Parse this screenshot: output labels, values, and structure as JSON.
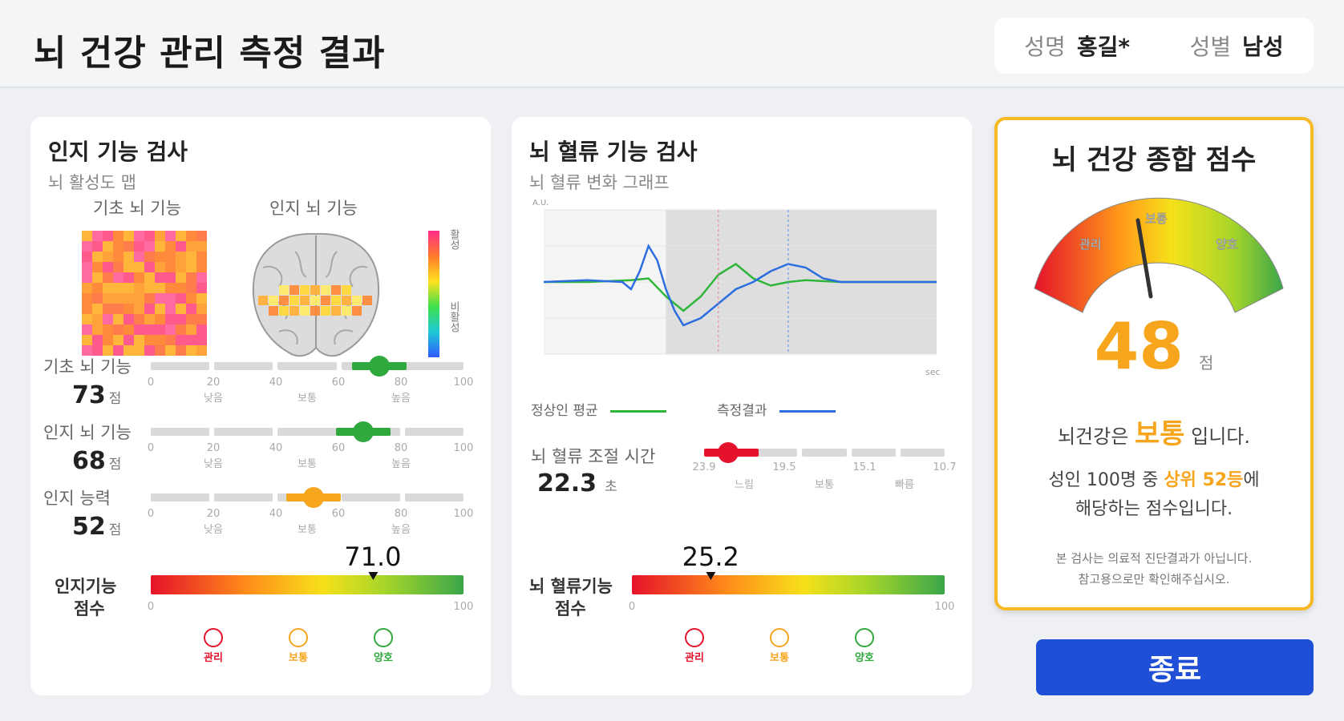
{
  "header": {
    "title": "뇌 건강 관리 측정 결과",
    "name_label": "성명",
    "name_value": "홍길*",
    "gender_label": "성별",
    "gender_value": "남성"
  },
  "cognitive": {
    "title": "인지 기능 검사",
    "subtitle": "뇌 활성도 맵",
    "map_left_label": "기초 뇌 기능",
    "map_right_label": "인지 뇌 기능",
    "colorbar_top": "활성",
    "colorbar_bottom": "비활성",
    "tick_values": [
      "0",
      "20",
      "40",
      "60",
      "80",
      "100"
    ],
    "tick_grades": [
      "낮음",
      "보통",
      "높음"
    ],
    "metrics": [
      {
        "name": "기초 뇌 기능",
        "value": "73",
        "unit": "점",
        "level": 73,
        "color": "#2fa83e"
      },
      {
        "name": "인지 뇌 기능",
        "value": "68",
        "unit": "점",
        "level": 68,
        "color": "#2fa83e"
      },
      {
        "name": "인지 능력",
        "value": "52",
        "unit": "점",
        "level": 52,
        "color": "#f7a51c"
      }
    ],
    "score_label_1": "인지기능",
    "score_label_2": "점수",
    "score_value": "71.0",
    "score_level": 71.0,
    "scale_min": "0",
    "scale_max": "100",
    "faces": [
      "관리",
      "보통",
      "양호"
    ]
  },
  "bloodflow": {
    "title": "뇌 혈류 기능 검사",
    "subtitle": "뇌 혈류 변화 그래프",
    "y_unit": "A.U.",
    "x_unit": "sec",
    "legend_normal": "정상인 평균",
    "legend_measured": "측정결과",
    "time_label": "뇌 혈류 조절 시간",
    "time_value": "22.3",
    "time_unit": "초",
    "time_ticks": [
      "23.9",
      "19.5",
      "15.1",
      "10.7"
    ],
    "time_grades": [
      "느림",
      "보통",
      "빠름"
    ],
    "score_label_1": "뇌 혈류기능",
    "score_label_2": "점수",
    "score_value": "25.2",
    "score_level": 25.2,
    "scale_min": "0",
    "scale_max": "100",
    "faces": [
      "관리",
      "보통",
      "양호"
    ]
  },
  "total": {
    "title": "뇌 건강 종합 점수",
    "gauge_labels": [
      "관리",
      "보통",
      "양호"
    ],
    "score": "48",
    "score_unit": "점",
    "status_prefix": "뇌건강은",
    "status": "보통",
    "status_suffix": "입니다.",
    "rank_prefix": "성인 100명 중",
    "rank": "상위 52등",
    "rank_suffix": "에",
    "rank_line2": "해당하는 점수입니다.",
    "notice_1": "본 검사는 의료적 진단결과가 아닙니다.",
    "notice_2": "참고용으로만 확인해주십시오."
  },
  "end_button": "종료",
  "colors": {
    "accent_orange": "#f7a51c",
    "accent_blue": "#1f4fd6",
    "good_green": "#2fa83e",
    "bad_red": "#e4122a"
  },
  "chart_data": {
    "type": "line",
    "title": "뇌 혈류 변화 그래프",
    "ylabel": "A.U.",
    "xlabel": "sec",
    "series": [
      {
        "name": "정상인 평균",
        "color": "#2fb53a",
        "x": [
          -10,
          -5,
          0,
          2,
          4,
          6,
          8,
          10,
          12,
          14,
          16,
          18,
          20,
          24,
          28,
          35
        ],
        "values": [
          0,
          0,
          0.05,
          0.1,
          -0.4,
          -0.8,
          -0.4,
          0.2,
          0.5,
          0.1,
          -0.1,
          0,
          0.05,
          0,
          0,
          0
        ]
      },
      {
        "name": "측정결과",
        "color": "#2c6ee0",
        "x": [
          -10,
          -5,
          -1,
          0,
          1,
          2,
          3,
          4,
          5,
          6,
          8,
          10,
          12,
          14,
          16,
          18,
          20,
          22,
          24,
          28,
          35
        ],
        "values": [
          0,
          0.05,
          0,
          -0.2,
          0.3,
          1.0,
          0.6,
          -0.2,
          -0.8,
          -1.2,
          -1.0,
          -0.6,
          -0.2,
          0,
          0.3,
          0.5,
          0.4,
          0.1,
          0,
          0,
          0
        ]
      }
    ],
    "xlim": [
      -10,
      35
    ],
    "ylim": [
      -2,
      2
    ]
  }
}
